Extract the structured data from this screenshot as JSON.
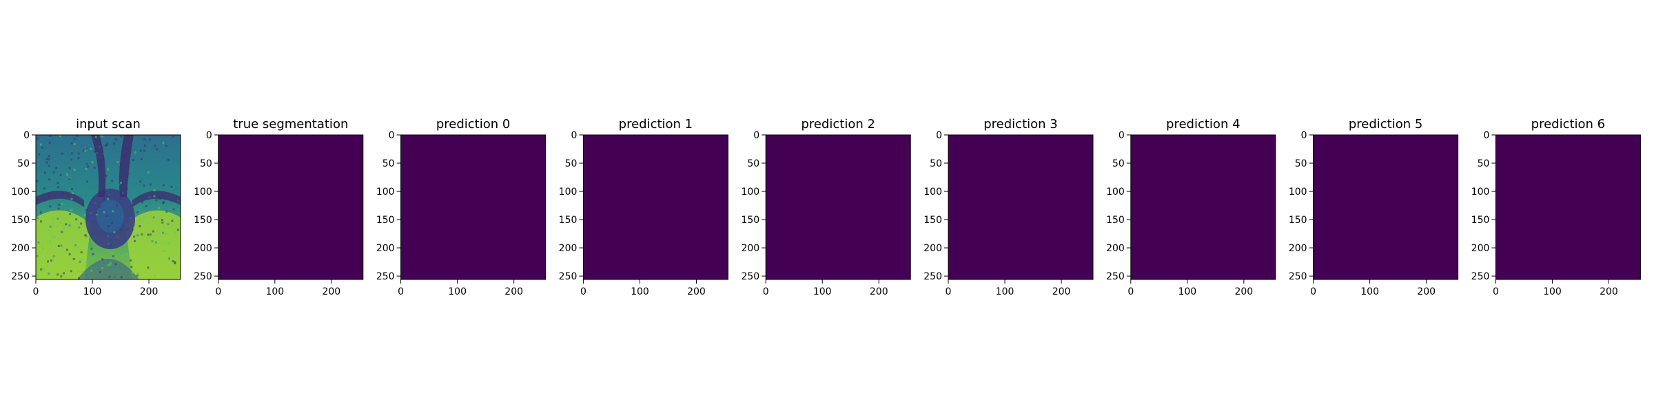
{
  "chart_data": {
    "type": "heatmap",
    "panels": [
      {
        "title": "input scan",
        "content": "mri-scan"
      },
      {
        "title": "true segmentation",
        "content": "uniform"
      },
      {
        "title": "prediction 0",
        "content": "uniform"
      },
      {
        "title": "prediction 1",
        "content": "uniform"
      },
      {
        "title": "prediction 2",
        "content": "uniform"
      },
      {
        "title": "prediction 3",
        "content": "uniform"
      },
      {
        "title": "prediction 4",
        "content": "uniform"
      },
      {
        "title": "prediction 5",
        "content": "uniform"
      },
      {
        "title": "prediction 6",
        "content": "uniform"
      }
    ],
    "x_ticks": [
      0,
      100,
      200
    ],
    "y_ticks": [
      0,
      50,
      100,
      150,
      200,
      250
    ],
    "x_range": [
      0,
      256
    ],
    "y_range": [
      0,
      256
    ],
    "y_inverted": true,
    "grid": false,
    "colormap": "viridis",
    "colors": {
      "background": "#440154",
      "scan_dark": "#3b2f6e",
      "scan_mid": "#2a788e",
      "scan_bright": "#a8db34"
    }
  }
}
